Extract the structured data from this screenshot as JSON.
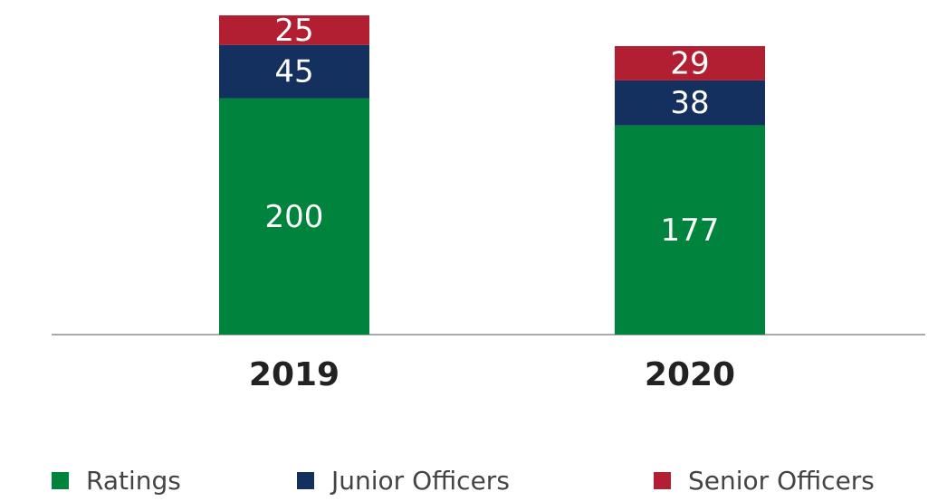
{
  "chart_data": {
    "type": "stacked-bar",
    "categories": [
      "2019",
      "2020"
    ],
    "series": [
      {
        "name": "Ratings",
        "color": "#00843d",
        "values": [
          200,
          177
        ]
      },
      {
        "name": "Junior Officers",
        "color": "#14305f",
        "values": [
          45,
          38
        ]
      },
      {
        "name": "Senior Officers",
        "color": "#b31f32",
        "values": [
          25,
          29
        ]
      }
    ],
    "legend": "bottom"
  }
}
